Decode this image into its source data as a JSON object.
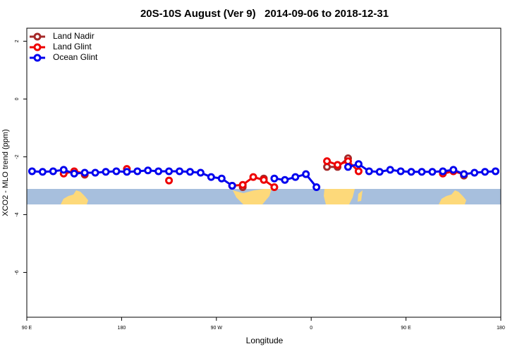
{
  "chart_data": {
    "type": "line",
    "title": "20S-10S August (Ver 9)   2014-09-06 to 2018-12-31",
    "xlabel": "Longitude",
    "ylabel": "XCO2 - MLO trend (ppm)",
    "x": [
      95,
      105,
      115,
      125,
      135,
      145,
      155,
      165,
      175,
      185,
      195,
      205,
      215,
      225,
      235,
      245,
      255,
      265,
      275,
      285,
      295,
      305,
      315,
      325,
      335,
      345,
      355,
      365,
      375,
      385,
      395,
      405,
      415,
      425,
      435,
      445,
      455,
      465,
      475,
      485,
      495,
      505,
      515,
      525,
      535
    ],
    "series": [
      {
        "name": "Land Nadir",
        "color": "#a52a2a",
        "values": [
          null,
          null,
          null,
          null,
          null,
          -2.62,
          null,
          null,
          null,
          null,
          null,
          null,
          null,
          null,
          null,
          null,
          null,
          null,
          null,
          null,
          -3.05,
          null,
          -2.75,
          null,
          null,
          null,
          null,
          null,
          -2.35,
          -2.35,
          -2.05,
          null,
          null,
          null,
          null,
          null,
          null,
          null,
          null,
          null,
          null,
          -2.65,
          null,
          null,
          null
        ]
      },
      {
        "name": "Land Glint",
        "color": "#ee0000",
        "values": [
          null,
          null,
          null,
          -2.58,
          -2.5,
          -2.58,
          null,
          null,
          null,
          -2.42,
          null,
          null,
          null,
          -2.82,
          null,
          null,
          null,
          null,
          null,
          -3.0,
          -2.97,
          -2.7,
          -2.8,
          -3.05,
          null,
          null,
          null,
          null,
          -2.15,
          -2.28,
          -2.15,
          -2.5,
          null,
          null,
          null,
          null,
          null,
          null,
          null,
          -2.58,
          -2.5,
          -2.6,
          null,
          null,
          null
        ]
      },
      {
        "name": "Ocean Glint",
        "color": "#0000ee",
        "values": [
          -2.5,
          -2.52,
          -2.5,
          -2.45,
          -2.58,
          -2.55,
          -2.55,
          -2.52,
          -2.5,
          -2.52,
          -2.5,
          -2.47,
          -2.5,
          -2.5,
          -2.5,
          -2.52,
          -2.55,
          -2.7,
          -2.75,
          -3.0,
          null,
          null,
          null,
          -2.75,
          -2.8,
          -2.7,
          -2.6,
          -3.05,
          null,
          null,
          -2.35,
          -2.25,
          -2.5,
          -2.52,
          -2.45,
          -2.5,
          -2.52,
          -2.52,
          -2.52,
          -2.5,
          -2.45,
          -2.6,
          -2.55,
          -2.52,
          -2.5
        ]
      }
    ],
    "xlim": [
      90,
      540
    ],
    "xticks": [
      {
        "value": 90,
        "label": "90 E"
      },
      180,
      {
        "value": 270,
        "label": "90 W"
      },
      {
        "value": 360,
        "label": "0"
      },
      {
        "value": 450,
        "label": "90 E"
      },
      {
        "value": 540,
        "label": "180"
      }
    ],
    "ylim": [
      -7.55,
      2.45
    ],
    "yticks": [
      2,
      0,
      -2,
      -4,
      -6
    ],
    "legend": "top-left"
  }
}
